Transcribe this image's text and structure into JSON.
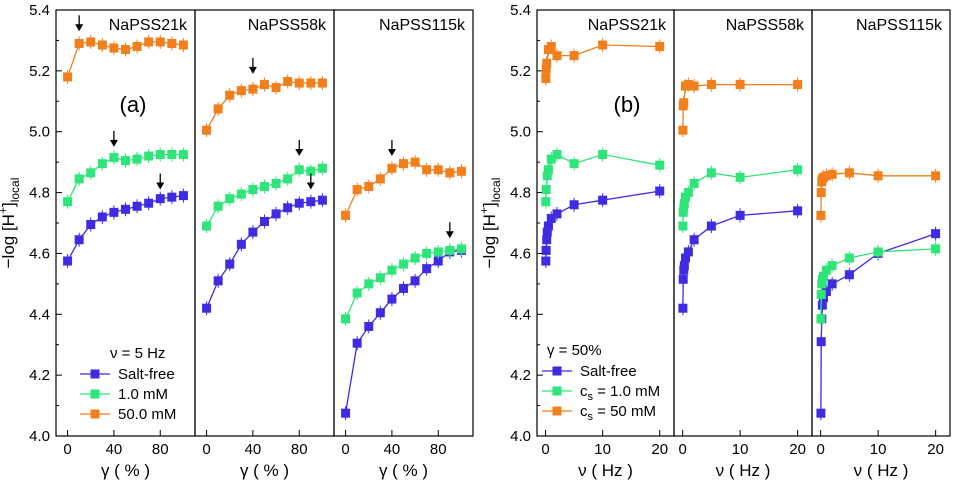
{
  "chart_data": {
    "type": "line",
    "colors": {
      "salt_free": "#3f2be0",
      "one_mM": "#2ee57a",
      "fifty_mM": "#f07f1c"
    },
    "ylabel_main": "−log [H",
    "ylabel_sup": "+",
    "ylabel_close": "]",
    "ylabel_sub": "local",
    "ylim": [
      4.0,
      5.4
    ],
    "yticks": [
      "4.0",
      "4.2",
      "4.4",
      "4.6",
      "4.8",
      "5.0",
      "5.2",
      "5.4"
    ],
    "groups": [
      {
        "letter": "(a)",
        "xlabel": "γ ( % )",
        "xlim": [
          -10,
          110
        ],
        "xticks": [
          {
            "v": 0,
            "t": "0"
          },
          {
            "v": 40,
            "t": "40"
          },
          {
            "v": 80,
            "t": "80"
          }
        ],
        "legend_title": "ν = 5 Hz",
        "legend": [
          "Salt-free",
          "1.0 mM",
          "50.0 mM"
        ],
        "panels": [
          {
            "title": "NaPSS21k",
            "series": [
              {
                "name": "Salt-free",
                "x": [
                  0,
                  10,
                  20,
                  30,
                  40,
                  50,
                  60,
                  70,
                  80,
                  90,
                  100
                ],
                "y": [
                  4.575,
                  4.645,
                  4.695,
                  4.72,
                  4.735,
                  4.745,
                  4.755,
                  4.765,
                  4.78,
                  4.785,
                  4.79
                ]
              },
              {
                "name": "1.0 mM",
                "x": [
                  0,
                  10,
                  20,
                  30,
                  40,
                  50,
                  60,
                  70,
                  80,
                  90,
                  100
                ],
                "y": [
                  4.77,
                  4.845,
                  4.865,
                  4.895,
                  4.915,
                  4.905,
                  4.91,
                  4.92,
                  4.925,
                  4.925,
                  4.925
                ]
              },
              {
                "name": "50.0 mM",
                "x": [
                  0,
                  10,
                  20,
                  30,
                  40,
                  50,
                  60,
                  70,
                  80,
                  90,
                  100
                ],
                "y": [
                  5.18,
                  5.29,
                  5.295,
                  5.285,
                  5.275,
                  5.27,
                  5.28,
                  5.295,
                  5.295,
                  5.29,
                  5.285
                ]
              }
            ],
            "arrows": [
              {
                "x": 10,
                "y": 5.33
              },
              {
                "x": 40,
                "y": 4.95
              },
              {
                "x": 80,
                "y": 4.81
              }
            ]
          },
          {
            "title": "NaPSS58k",
            "series": [
              {
                "name": "Salt-free",
                "x": [
                  0,
                  10,
                  20,
                  30,
                  40,
                  50,
                  60,
                  70,
                  80,
                  90,
                  100
                ],
                "y": [
                  4.42,
                  4.51,
                  4.565,
                  4.63,
                  4.67,
                  4.705,
                  4.73,
                  4.75,
                  4.765,
                  4.77,
                  4.775
                ]
              },
              {
                "name": "1.0 mM",
                "x": [
                  0,
                  10,
                  20,
                  30,
                  40,
                  50,
                  60,
                  70,
                  80,
                  90,
                  100
                ],
                "y": [
                  4.69,
                  4.755,
                  4.78,
                  4.795,
                  4.81,
                  4.82,
                  4.83,
                  4.845,
                  4.875,
                  4.87,
                  4.88
                ]
              },
              {
                "name": "50.0 mM",
                "x": [
                  0,
                  10,
                  20,
                  30,
                  40,
                  50,
                  60,
                  70,
                  80,
                  90,
                  100
                ],
                "y": [
                  5.005,
                  5.075,
                  5.12,
                  5.135,
                  5.14,
                  5.155,
                  5.145,
                  5.165,
                  5.16,
                  5.16,
                  5.16
                ]
              }
            ],
            "arrows": [
              {
                "x": 40,
                "y": 5.19
              },
              {
                "x": 80,
                "y": 4.92
              },
              {
                "x": 90,
                "y": 4.81
              }
            ]
          },
          {
            "title": "NaPSS115k",
            "series": [
              {
                "name": "Salt-free",
                "x": [
                  0,
                  10,
                  20,
                  30,
                  40,
                  50,
                  60,
                  70,
                  80,
                  90,
                  100
                ],
                "y": [
                  4.075,
                  4.305,
                  4.36,
                  4.405,
                  4.45,
                  4.485,
                  4.51,
                  4.55,
                  4.575,
                  4.605,
                  4.61
                ]
              },
              {
                "name": "1.0 mM",
                "x": [
                  0,
                  10,
                  20,
                  30,
                  40,
                  50,
                  60,
                  70,
                  80,
                  90,
                  100
                ],
                "y": [
                  4.385,
                  4.47,
                  4.5,
                  4.52,
                  4.545,
                  4.565,
                  4.585,
                  4.6,
                  4.605,
                  4.61,
                  4.615
                ]
              },
              {
                "name": "50.0 mM",
                "x": [
                  0,
                  10,
                  20,
                  30,
                  40,
                  50,
                  60,
                  70,
                  80,
                  90,
                  100
                ],
                "y": [
                  4.725,
                  4.81,
                  4.82,
                  4.845,
                  4.88,
                  4.895,
                  4.9,
                  4.875,
                  4.875,
                  4.865,
                  4.87
                ]
              }
            ],
            "arrows": [
              {
                "x": 40,
                "y": 4.92
              },
              {
                "x": 90,
                "y": 4.65
              }
            ]
          }
        ]
      },
      {
        "letter": "(b)",
        "xlabel": "ν ( Hz )",
        "xlim": [
          -1.5,
          22.5
        ],
        "xticks": [
          {
            "v": 0,
            "t": "0"
          },
          {
            "v": 10,
            "t": "10"
          },
          {
            "v": 20,
            "t": "20"
          }
        ],
        "legend_title": "γ = 50%",
        "legend": [
          {
            "main": "Salt-free",
            "sub": ""
          },
          {
            "main": "c",
            "sub": "s",
            "rest": " = 1.0 mM"
          },
          {
            "main": "c",
            "sub": "s",
            "rest": " = 50 mM"
          }
        ],
        "panels": [
          {
            "title": "NaPSS21k",
            "series": [
              {
                "name": "Salt-free",
                "x": [
                  0.05,
                  0.1,
                  0.2,
                  0.3,
                  0.5,
                  1,
                  2,
                  5,
                  10,
                  20
                ],
                "y": [
                  4.575,
                  4.61,
                  4.645,
                  4.67,
                  4.69,
                  4.715,
                  4.73,
                  4.76,
                  4.775,
                  4.805
                ]
              },
              {
                "name": "1.0 mM",
                "x": [
                  0.05,
                  0.1,
                  0.3,
                  0.5,
                  1,
                  2,
                  5,
                  10,
                  20
                ],
                "y": [
                  4.77,
                  4.81,
                  4.855,
                  4.875,
                  4.91,
                  4.925,
                  4.895,
                  4.925,
                  4.89
                ]
              },
              {
                "name": "50.0 mM",
                "x": [
                  0.05,
                  0.1,
                  0.2,
                  0.5,
                  1,
                  2,
                  5,
                  10,
                  20
                ],
                "y": [
                  5.175,
                  5.205,
                  5.225,
                  5.27,
                  5.28,
                  5.25,
                  5.25,
                  5.285,
                  5.28
                ]
              }
            ]
          },
          {
            "title": "NaPSS58k",
            "series": [
              {
                "name": "Salt-free",
                "x": [
                  0.05,
                  0.1,
                  0.2,
                  0.3,
                  0.5,
                  1,
                  2,
                  5,
                  10,
                  20
                ],
                "y": [
                  4.42,
                  4.515,
                  4.545,
                  4.56,
                  4.585,
                  4.605,
                  4.645,
                  4.69,
                  4.725,
                  4.74
                ]
              },
              {
                "name": "1.0 mM",
                "x": [
                  0.05,
                  0.1,
                  0.2,
                  0.3,
                  0.5,
                  1,
                  2,
                  5,
                  10,
                  20
                ],
                "y": [
                  4.69,
                  4.735,
                  4.75,
                  4.765,
                  4.785,
                  4.8,
                  4.83,
                  4.865,
                  4.85,
                  4.875
                ]
              },
              {
                "name": "50.0 mM",
                "x": [
                  0.05,
                  0.1,
                  0.2,
                  0.5,
                  1,
                  2,
                  5,
                  10,
                  20
                ],
                "y": [
                  5.005,
                  5.085,
                  5.095,
                  5.15,
                  5.155,
                  5.15,
                  5.155,
                  5.155,
                  5.155
                ]
              }
            ]
          },
          {
            "title": "NaPSS115k",
            "series": [
              {
                "name": "Salt-free",
                "x": [
                  0.05,
                  0.1,
                  0.2,
                  0.3,
                  0.5,
                  1,
                  2,
                  5,
                  10,
                  20
                ],
                "y": [
                  4.075,
                  4.31,
                  4.385,
                  4.43,
                  4.455,
                  4.475,
                  4.5,
                  4.53,
                  4.6,
                  4.665
                ]
              },
              {
                "name": "1.0 mM",
                "x": [
                  0.05,
                  0.1,
                  0.2,
                  0.3,
                  0.5,
                  1,
                  2,
                  5,
                  10,
                  20
                ],
                "y": [
                  4.385,
                  4.465,
                  4.5,
                  4.515,
                  4.525,
                  4.545,
                  4.56,
                  4.585,
                  4.605,
                  4.615
                ]
              },
              {
                "name": "50.0 mM",
                "x": [
                  0.05,
                  0.1,
                  0.2,
                  0.3,
                  0.5,
                  1,
                  2,
                  5,
                  10,
                  20
                ],
                "y": [
                  4.725,
                  4.8,
                  4.835,
                  4.845,
                  4.85,
                  4.855,
                  4.86,
                  4.865,
                  4.855,
                  4.855
                ]
              }
            ]
          }
        ]
      }
    ]
  }
}
